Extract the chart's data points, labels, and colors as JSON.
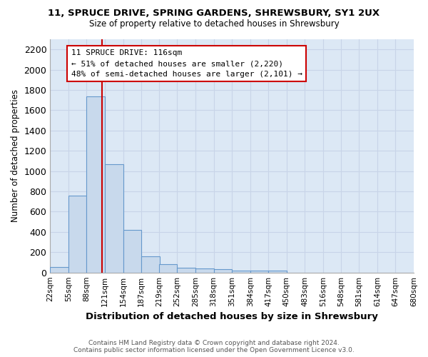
{
  "title1": "11, SPRUCE DRIVE, SPRING GARDENS, SHREWSBURY, SY1 2UX",
  "title2": "Size of property relative to detached houses in Shrewsbury",
  "xlabel": "Distribution of detached houses by size in Shrewsbury",
  "ylabel": "Number of detached properties",
  "bar_color": "#c8d9ec",
  "bar_edge_color": "#6699cc",
  "background_color": "#dce8f5",
  "grid_color": "#c8d4e8",
  "annotation_line_color": "#cc0000",
  "annotation_box_edgecolor": "#cc0000",
  "property_size": 116,
  "annotation_text": "11 SPRUCE DRIVE: 116sqm\n← 51% of detached houses are smaller (2,220)\n48% of semi-detached houses are larger (2,101) →",
  "footer_text": "Contains HM Land Registry data © Crown copyright and database right 2024.\nContains public sector information licensed under the Open Government Licence v3.0.",
  "bin_edges": [
    22,
    55,
    88,
    121,
    154,
    187,
    219,
    252,
    285,
    318,
    351,
    384,
    417,
    450,
    483,
    516,
    548,
    581,
    614,
    647,
    680
  ],
  "bin_labels": [
    "22sqm",
    "55sqm",
    "88sqm",
    "121sqm",
    "154sqm",
    "187sqm",
    "219sqm",
    "252sqm",
    "285sqm",
    "318sqm",
    "351sqm",
    "384sqm",
    "417sqm",
    "450sqm",
    "483sqm",
    "516sqm",
    "548sqm",
    "581sqm",
    "614sqm",
    "647sqm",
    "680sqm"
  ],
  "bar_heights": [
    55,
    760,
    1740,
    1070,
    420,
    160,
    85,
    50,
    40,
    30,
    20,
    20,
    20,
    0,
    0,
    0,
    0,
    0,
    0,
    0
  ],
  "ylim": [
    0,
    2300
  ],
  "yticks": [
    0,
    200,
    400,
    600,
    800,
    1000,
    1200,
    1400,
    1600,
    1800,
    2000,
    2200
  ]
}
